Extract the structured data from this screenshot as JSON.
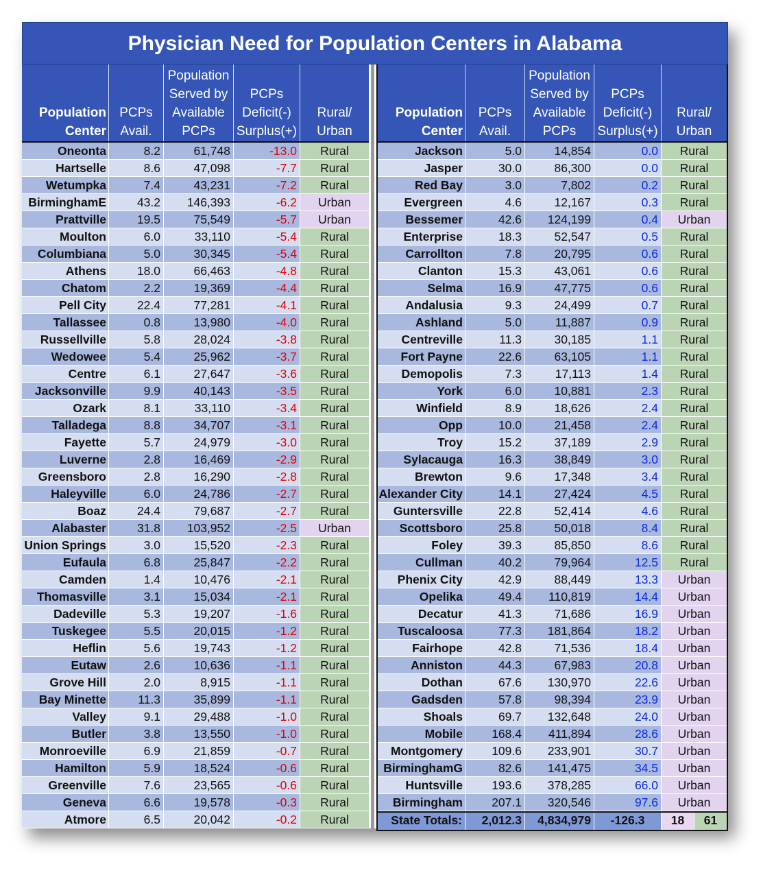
{
  "title": "Physician Need for Population Centers in Alabama",
  "headers": {
    "center": "Population\nCenter",
    "avail": "PCPs\nAvail.",
    "served": "Population\nServed by\nAvailable\nPCPs",
    "deficit": "PCPs\nDeficit(-)\nSurplus(+)",
    "type": "Rural/\nUrban"
  },
  "colors": {
    "header_blue": "#3556b6",
    "row_dark": "#a8b8df",
    "row_light": "#d5ddf0",
    "rural": "#bcd4b6",
    "urban": "#e2d3ee",
    "deficit_red": "#e00000",
    "surplus_blue": "#0a28e0"
  },
  "left_rows": [
    {
      "name": "Oneonta",
      "avail": "8.2",
      "served": "61,748",
      "deficit": "-13.0",
      "type": "Rural"
    },
    {
      "name": "Hartselle",
      "avail": "8.6",
      "served": "47,098",
      "deficit": "-7.7",
      "type": "Rural"
    },
    {
      "name": "Wetumpka",
      "avail": "7.4",
      "served": "43,231",
      "deficit": "-7.2",
      "type": "Rural"
    },
    {
      "name": "BirminghamE",
      "avail": "43.2",
      "served": "146,393",
      "deficit": "-6.2",
      "type": "Urban"
    },
    {
      "name": "Prattville",
      "avail": "19.5",
      "served": "75,549",
      "deficit": "-5.7",
      "type": "Urban"
    },
    {
      "name": "Moulton",
      "avail": "6.0",
      "served": "33,110",
      "deficit": "-5.4",
      "type": "Rural"
    },
    {
      "name": "Columbiana",
      "avail": "5.0",
      "served": "30,345",
      "deficit": "-5.4",
      "type": "Rural"
    },
    {
      "name": "Athens",
      "avail": "18.0",
      "served": "66,463",
      "deficit": "-4.8",
      "type": "Rural"
    },
    {
      "name": "Chatom",
      "avail": "2.2",
      "served": "19,369",
      "deficit": "-4.4",
      "type": "Rural"
    },
    {
      "name": "Pell City",
      "avail": "22.4",
      "served": "77,281",
      "deficit": "-4.1",
      "type": "Rural"
    },
    {
      "name": "Tallassee",
      "avail": "0.8",
      "served": "13,980",
      "deficit": "-4.0",
      "type": "Rural"
    },
    {
      "name": "Russellville",
      "avail": "5.8",
      "served": "28,024",
      "deficit": "-3.8",
      "type": "Rural"
    },
    {
      "name": "Wedowee",
      "avail": "5.4",
      "served": "25,962",
      "deficit": "-3.7",
      "type": "Rural"
    },
    {
      "name": "Centre",
      "avail": "6.1",
      "served": "27,647",
      "deficit": "-3.6",
      "type": "Rural"
    },
    {
      "name": "Jacksonville",
      "avail": "9.9",
      "served": "40,143",
      "deficit": "-3.5",
      "type": "Rural"
    },
    {
      "name": "Ozark",
      "avail": "8.1",
      "served": "33,110",
      "deficit": "-3.4",
      "type": "Rural"
    },
    {
      "name": "Talladega",
      "avail": "8.8",
      "served": "34,707",
      "deficit": "-3.1",
      "type": "Rural"
    },
    {
      "name": "Fayette",
      "avail": "5.7",
      "served": "24,979",
      "deficit": "-3.0",
      "type": "Rural"
    },
    {
      "name": "Luverne",
      "avail": "2.8",
      "served": "16,469",
      "deficit": "-2.9",
      "type": "Rural"
    },
    {
      "name": "Greensboro",
      "avail": "2.8",
      "served": "16,290",
      "deficit": "-2.8",
      "type": "Rural"
    },
    {
      "name": "Haleyville",
      "avail": "6.0",
      "served": "24,786",
      "deficit": "-2.7",
      "type": "Rural"
    },
    {
      "name": "Boaz",
      "avail": "24.4",
      "served": "79,687",
      "deficit": "-2.7",
      "type": "Rural"
    },
    {
      "name": "Alabaster",
      "avail": "31.8",
      "served": "103,952",
      "deficit": "-2.5",
      "type": "Urban"
    },
    {
      "name": "Union Springs",
      "avail": "3.0",
      "served": "15,520",
      "deficit": "-2.3",
      "type": "Rural"
    },
    {
      "name": "Eufaula",
      "avail": "6.8",
      "served": "25,847",
      "deficit": "-2.2",
      "type": "Rural"
    },
    {
      "name": "Camden",
      "avail": "1.4",
      "served": "10,476",
      "deficit": "-2.1",
      "type": "Rural"
    },
    {
      "name": "Thomasville",
      "avail": "3.1",
      "served": "15,034",
      "deficit": "-2.1",
      "type": "Rural"
    },
    {
      "name": "Dadeville",
      "avail": "5.3",
      "served": "19,207",
      "deficit": "-1.6",
      "type": "Rural"
    },
    {
      "name": "Tuskegee",
      "avail": "5.5",
      "served": "20,015",
      "deficit": "-1.2",
      "type": "Rural"
    },
    {
      "name": "Heflin",
      "avail": "5.6",
      "served": "19,743",
      "deficit": "-1.2",
      "type": "Rural"
    },
    {
      "name": "Eutaw",
      "avail": "2.6",
      "served": "10,636",
      "deficit": "-1.1",
      "type": "Rural"
    },
    {
      "name": "Grove Hill",
      "avail": "2.0",
      "served": "8,915",
      "deficit": "-1.1",
      "type": "Rural"
    },
    {
      "name": "Bay Minette",
      "avail": "11.3",
      "served": "35,899",
      "deficit": "-1.1",
      "type": "Rural"
    },
    {
      "name": "Valley",
      "avail": "9.1",
      "served": "29,488",
      "deficit": "-1.0",
      "type": "Rural"
    },
    {
      "name": "Butler",
      "avail": "3.8",
      "served": "13,550",
      "deficit": "-1.0",
      "type": "Rural"
    },
    {
      "name": "Monroeville",
      "avail": "6.9",
      "served": "21,859",
      "deficit": "-0.7",
      "type": "Rural"
    },
    {
      "name": "Hamilton",
      "avail": "5.9",
      "served": "18,524",
      "deficit": "-0.6",
      "type": "Rural"
    },
    {
      "name": "Greenville",
      "avail": "7.6",
      "served": "23,565",
      "deficit": "-0.6",
      "type": "Rural"
    },
    {
      "name": "Geneva",
      "avail": "6.6",
      "served": "19,578",
      "deficit": "-0.3",
      "type": "Rural"
    },
    {
      "name": "Atmore",
      "avail": "6.5",
      "served": "20,042",
      "deficit": "-0.2",
      "type": "Rural"
    }
  ],
  "right_rows": [
    {
      "name": "Jackson",
      "avail": "5.0",
      "served": "14,854",
      "deficit": "0.0",
      "type": "Rural"
    },
    {
      "name": "Jasper",
      "avail": "30.0",
      "served": "86,300",
      "deficit": "0.0",
      "type": "Rural"
    },
    {
      "name": "Red Bay",
      "avail": "3.0",
      "served": "7,802",
      "deficit": "0.2",
      "type": "Rural"
    },
    {
      "name": "Evergreen",
      "avail": "4.6",
      "served": "12,167",
      "deficit": "0.3",
      "type": "Rural"
    },
    {
      "name": "Bessemer",
      "avail": "42.6",
      "served": "124,199",
      "deficit": "0.4",
      "type": "Urban"
    },
    {
      "name": "Enterprise",
      "avail": "18.3",
      "served": "52,547",
      "deficit": "0.5",
      "type": "Rural"
    },
    {
      "name": "Carrollton",
      "avail": "7.8",
      "served": "20,795",
      "deficit": "0.6",
      "type": "Rural"
    },
    {
      "name": "Clanton",
      "avail": "15.3",
      "served": "43,061",
      "deficit": "0.6",
      "type": "Rural"
    },
    {
      "name": "Selma",
      "avail": "16.9",
      "served": "47,775",
      "deficit": "0.6",
      "type": "Rural"
    },
    {
      "name": "Andalusia",
      "avail": "9.3",
      "served": "24,499",
      "deficit": "0.7",
      "type": "Rural"
    },
    {
      "name": "Ashland",
      "avail": "5.0",
      "served": "11,887",
      "deficit": "0.9",
      "type": "Rural"
    },
    {
      "name": "Centreville",
      "avail": "11.3",
      "served": "30,185",
      "deficit": "1.1",
      "type": "Rural"
    },
    {
      "name": "Fort Payne",
      "avail": "22.6",
      "served": "63,105",
      "deficit": "1.1",
      "type": "Rural"
    },
    {
      "name": "Demopolis",
      "avail": "7.3",
      "served": "17,113",
      "deficit": "1.4",
      "type": "Rural"
    },
    {
      "name": "York",
      "avail": "6.0",
      "served": "10,881",
      "deficit": "2.3",
      "type": "Rural"
    },
    {
      "name": "Winfield",
      "avail": "8.9",
      "served": "18,626",
      "deficit": "2.4",
      "type": "Rural"
    },
    {
      "name": "Opp",
      "avail": "10.0",
      "served": "21,458",
      "deficit": "2.4",
      "type": "Rural"
    },
    {
      "name": "Troy",
      "avail": "15.2",
      "served": "37,189",
      "deficit": "2.9",
      "type": "Rural"
    },
    {
      "name": "Sylacauga",
      "avail": "16.3",
      "served": "38,849",
      "deficit": "3.0",
      "type": "Rural"
    },
    {
      "name": "Brewton",
      "avail": "9.6",
      "served": "17,348",
      "deficit": "3.4",
      "type": "Rural"
    },
    {
      "name": "Alexander City",
      "avail": "14.1",
      "served": "27,424",
      "deficit": "4.5",
      "type": "Rural"
    },
    {
      "name": "Guntersville",
      "avail": "22.8",
      "served": "52,414",
      "deficit": "4.6",
      "type": "Rural"
    },
    {
      "name": "Scottsboro",
      "avail": "25.8",
      "served": "50,018",
      "deficit": "8.4",
      "type": "Rural"
    },
    {
      "name": "Foley",
      "avail": "39.3",
      "served": "85,850",
      "deficit": "8.6",
      "type": "Rural"
    },
    {
      "name": "Cullman",
      "avail": "40.2",
      "served": "79,964",
      "deficit": "12.5",
      "type": "Rural"
    },
    {
      "name": "Phenix City",
      "avail": "42.9",
      "served": "88,449",
      "deficit": "13.3",
      "type": "Urban"
    },
    {
      "name": "Opelika",
      "avail": "49.4",
      "served": "110,819",
      "deficit": "14.4",
      "type": "Urban"
    },
    {
      "name": "Decatur",
      "avail": "41.3",
      "served": "71,686",
      "deficit": "16.9",
      "type": "Urban"
    },
    {
      "name": "Tuscaloosa",
      "avail": "77.3",
      "served": "181,864",
      "deficit": "18.2",
      "type": "Urban"
    },
    {
      "name": "Fairhope",
      "avail": "42.8",
      "served": "71,536",
      "deficit": "18.4",
      "type": "Urban"
    },
    {
      "name": "Anniston",
      "avail": "44.3",
      "served": "67,983",
      "deficit": "20.8",
      "type": "Urban"
    },
    {
      "name": "Dothan",
      "avail": "67.6",
      "served": "130,970",
      "deficit": "22.6",
      "type": "Urban"
    },
    {
      "name": "Gadsden",
      "avail": "57.8",
      "served": "98,394",
      "deficit": "23.9",
      "type": "Urban"
    },
    {
      "name": "Shoals",
      "avail": "69.7",
      "served": "132,648",
      "deficit": "24.0",
      "type": "Urban"
    },
    {
      "name": "Mobile",
      "avail": "168.4",
      "served": "411,894",
      "deficit": "28.6",
      "type": "Urban"
    },
    {
      "name": "Montgomery",
      "avail": "109.6",
      "served": "233,901",
      "deficit": "30.7",
      "type": "Urban"
    },
    {
      "name": "BirminghamG",
      "avail": "82.6",
      "served": "141,475",
      "deficit": "34.5",
      "type": "Urban"
    },
    {
      "name": "Huntsville",
      "avail": "193.6",
      "served": "378,285",
      "deficit": "66.0",
      "type": "Urban"
    },
    {
      "name": "Birmingham",
      "avail": "207.1",
      "served": "320,546",
      "deficit": "97.6",
      "type": "Urban"
    }
  ],
  "totals": {
    "label": "State Totals:",
    "avail": "2,012.3",
    "served": "4,834,979",
    "deficit": "-126.3",
    "urban_count": "18",
    "rural_count": "61"
  }
}
